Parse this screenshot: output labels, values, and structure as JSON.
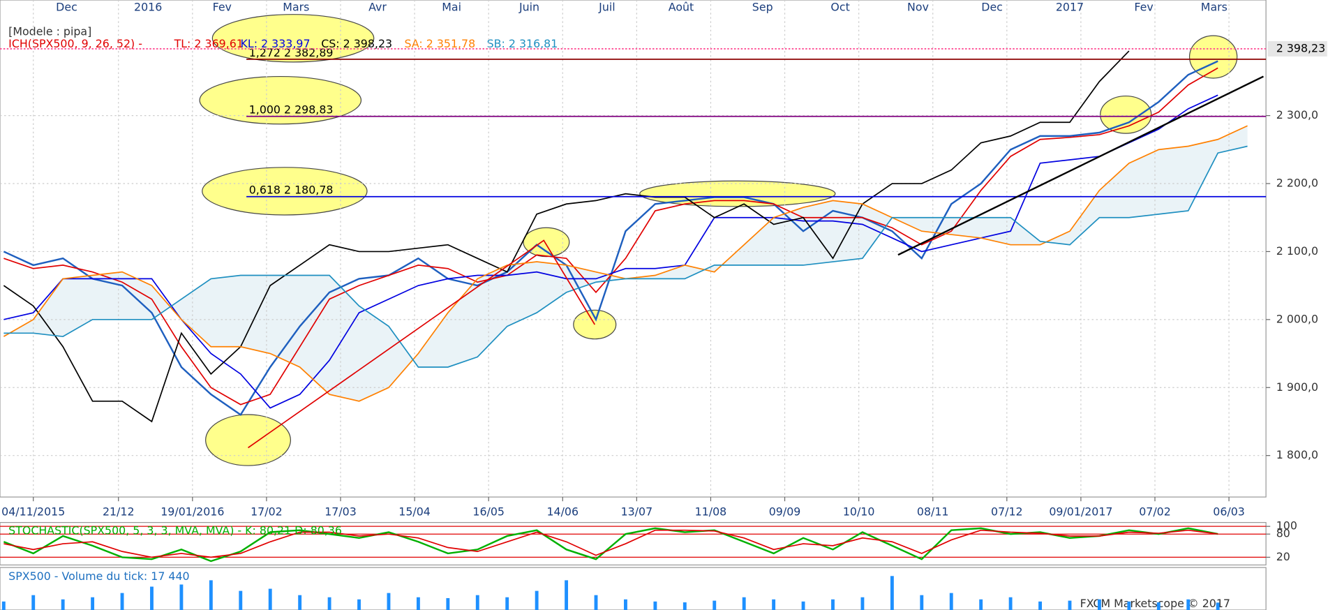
{
  "chart_data": [
    {
      "type": "line",
      "title": "[Modele : pipa]",
      "indicator": "ICH(SPX500, 9, 26, 52) -",
      "x": [
        -8,
        0,
        8,
        16,
        24,
        32,
        40,
        48,
        56,
        64,
        72,
        80,
        88,
        96,
        104,
        112,
        120,
        128,
        136,
        144,
        152,
        160,
        168,
        176,
        184,
        192,
        200,
        208,
        216,
        224,
        232,
        240,
        248,
        256,
        264,
        272,
        280,
        288,
        296,
        304,
        312,
        320,
        328
      ],
      "series": [
        {
          "color": "#1e5fbf",
          "values": [
            2100,
            2080,
            2090,
            2060,
            2050,
            2010,
            1930,
            1890,
            1860,
            1930,
            1990,
            2040,
            2060,
            2065,
            2090,
            2060,
            2050,
            2070,
            2110,
            2080,
            2000,
            2130,
            2170,
            2175,
            2180,
            2180,
            2170,
            2130,
            2160,
            2150,
            2130,
            2090,
            2170,
            2200,
            2250,
            2270,
            2270,
            2275,
            2290,
            2320,
            2360,
            2380,
            null
          ]
        },
        {
          "name": "TL: 2 369,61",
          "color": "#e00000",
          "values": [
            2090,
            2075,
            2080,
            2070,
            2055,
            2030,
            1960,
            1900,
            1875,
            1890,
            1960,
            2030,
            2050,
            2065,
            2080,
            2075,
            2055,
            2065,
            2095,
            2090,
            2040,
            2090,
            2160,
            2170,
            2175,
            2175,
            2170,
            2150,
            2150,
            2150,
            2135,
            2110,
            2130,
            2190,
            2240,
            2265,
            2268,
            2272,
            2285,
            2305,
            2345,
            2370,
            null
          ]
        },
        {
          "name": "KL: 2 333,97",
          "color": "#0000e0",
          "values": [
            2000,
            2010,
            2060,
            2060,
            2060,
            2060,
            2000,
            1950,
            1920,
            1870,
            1890,
            1940,
            2010,
            2030,
            2050,
            2060,
            2065,
            2065,
            2070,
            2060,
            2060,
            2075,
            2075,
            2080,
            2150,
            2150,
            2150,
            2145,
            2145,
            2140,
            2120,
            2100,
            2110,
            2120,
            2130,
            2230,
            2235,
            2240,
            2260,
            2280,
            2310,
            2330,
            null
          ]
        },
        {
          "name": "CS: 2 398,23",
          "color": "#000000",
          "values": [
            2050,
            2020,
            1960,
            1880,
            1880,
            1850,
            1980,
            1920,
            1960,
            2050,
            2080,
            2110,
            2100,
            2100,
            2105,
            2110,
            2090,
            2070,
            2155,
            2170,
            2175,
            2185,
            2180,
            2180,
            2150,
            2170,
            2140,
            2150,
            2090,
            2170,
            2200,
            2200,
            2220,
            2260,
            2270,
            2290,
            2290,
            2350,
            2395,
            null,
            null,
            null,
            null
          ]
        },
        {
          "name": "SA: 2 351,78",
          "color": "#ff8000",
          "values": [
            1975,
            2000,
            2060,
            2065,
            2070,
            2050,
            2000,
            1960,
            1960,
            1950,
            1930,
            1890,
            1880,
            1900,
            1950,
            2010,
            2060,
            2080,
            2085,
            2080,
            2070,
            2060,
            2065,
            2080,
            2070,
            2110,
            2150,
            2165,
            2175,
            2170,
            2150,
            2130,
            2125,
            2120,
            2110,
            2110,
            2130,
            2190,
            2230,
            2250,
            2255,
            2265,
            2285
          ]
        },
        {
          "name": "SB: 2 316,81",
          "color": "#1e8fc0",
          "values": [
            1980,
            1980,
            1975,
            2000,
            2000,
            2000,
            2030,
            2060,
            2065,
            2065,
            2065,
            2065,
            2020,
            1990,
            1930,
            1930,
            1945,
            1990,
            2010,
            2040,
            2055,
            2060,
            2060,
            2060,
            2080,
            2080,
            2080,
            2080,
            2085,
            2090,
            2150,
            2150,
            2150,
            2150,
            2150,
            2115,
            2110,
            2150,
            2150,
            2155,
            2160,
            2245,
            2255
          ]
        }
      ],
      "cloud_color": "#dcebf2",
      "xlim": [
        -9,
        333
      ],
      "ylim": [
        1739,
        2470
      ],
      "xticks": [
        {
          "value": 0,
          "label": "04/11/2015"
        },
        {
          "value": 23,
          "label": "21/12"
        },
        {
          "value": 43,
          "label": "19/01/2016"
        },
        {
          "value": 63,
          "label": "17/02"
        },
        {
          "value": 83,
          "label": "17/03"
        },
        {
          "value": 103,
          "label": "15/04"
        },
        {
          "value": 123,
          "label": "16/05"
        },
        {
          "value": 143,
          "label": "14/06"
        },
        {
          "value": 163,
          "label": "13/07"
        },
        {
          "value": 183,
          "label": "11/08"
        },
        {
          "value": 203,
          "label": "09/09"
        },
        {
          "value": 223,
          "label": "10/10"
        },
        {
          "value": 243,
          "label": "08/11"
        },
        {
          "value": 263,
          "label": "07/12"
        },
        {
          "value": 283,
          "label": "09/01/2017"
        },
        {
          "value": 303,
          "label": "07/02"
        },
        {
          "value": 323,
          "label": "06/03"
        }
      ],
      "top_xticks": [
        {
          "value": 9,
          "label": "Dec"
        },
        {
          "value": 31,
          "label": "2016"
        },
        {
          "value": 51,
          "label": "Fev"
        },
        {
          "value": 71,
          "label": "Mars"
        },
        {
          "value": 93,
          "label": "Avr"
        },
        {
          "value": 113,
          "label": "Mai"
        },
        {
          "value": 134,
          "label": "Juin"
        },
        {
          "value": 155,
          "label": "Juil"
        },
        {
          "value": 175,
          "label": "Août"
        },
        {
          "value": 197,
          "label": "Sep"
        },
        {
          "value": 218,
          "label": "Oct"
        },
        {
          "value": 239,
          "label": "Nov"
        },
        {
          "value": 259,
          "label": "Dec"
        },
        {
          "value": 280,
          "label": "2017"
        },
        {
          "value": 300,
          "label": "Fev"
        },
        {
          "value": 319,
          "label": "Mars"
        }
      ],
      "yticks": [
        {
          "value": 1800,
          "label": "1 800,0"
        },
        {
          "value": 1900,
          "label": "1 900,0"
        },
        {
          "value": 2000,
          "label": "2 000,0"
        },
        {
          "value": 2100,
          "label": "2 100,0"
        },
        {
          "value": 2200,
          "label": "2 200,0"
        },
        {
          "value": 2300,
          "label": "2 300,0"
        }
      ],
      "levels": [
        {
          "label": "1,272 2 382,89",
          "value": 2382.89,
          "color": "#8b0000"
        },
        {
          "label": "1,000 2 298,83",
          "value": 2298.83,
          "color": "#800080"
        },
        {
          "label": "0,618 2 180,78",
          "value": 2180.78,
          "color": "#0000e0"
        }
      ],
      "last_price": {
        "value": 2398.23,
        "label": "2 398,23",
        "color": "#ff4d94"
      },
      "grid": true,
      "grid_color": "#cccccc"
    },
    {
      "type": "line",
      "title": "STOCHASTIC(SPX500, 5, 3, 3, MVA, MVA) - K: 80,21 D: 80,36",
      "x": [
        -8,
        0,
        8,
        16,
        24,
        32,
        40,
        48,
        56,
        64,
        72,
        80,
        88,
        96,
        104,
        112,
        120,
        128,
        136,
        144,
        152,
        160,
        168,
        176,
        184,
        192,
        200,
        208,
        216,
        224,
        232,
        240,
        248,
        256,
        264,
        272,
        280,
        288,
        296,
        304,
        312,
        320,
        328
      ],
      "series": [
        {
          "name": "K",
          "color": "#00b000",
          "values": [
            60,
            30,
            75,
            50,
            20,
            15,
            40,
            10,
            35,
            85,
            90,
            80,
            70,
            85,
            60,
            30,
            40,
            75,
            90,
            40,
            15,
            80,
            95,
            85,
            90,
            60,
            30,
            70,
            40,
            85,
            50,
            15,
            90,
            95,
            80,
            85,
            70,
            75,
            90,
            80,
            95,
            80.21,
            null
          ]
        },
        {
          "name": "D",
          "color": "#e00000",
          "values": [
            55,
            40,
            55,
            60,
            35,
            20,
            30,
            20,
            30,
            60,
            85,
            85,
            75,
            80,
            70,
            45,
            35,
            60,
            85,
            60,
            25,
            55,
            90,
            90,
            88,
            70,
            40,
            55,
            50,
            70,
            60,
            30,
            65,
            90,
            85,
            82,
            75,
            75,
            85,
            82,
            90,
            80.36,
            null
          ]
        }
      ],
      "xlim": [
        -9,
        333
      ],
      "ylim": [
        0,
        110
      ],
      "yticks": [
        20,
        80,
        100
      ],
      "grid": true,
      "grid_color": "#e00000"
    },
    {
      "type": "bar",
      "title": "SPX500 - Volume du tick: 17 440",
      "x": [
        -8,
        0,
        8,
        16,
        24,
        32,
        40,
        48,
        56,
        64,
        72,
        80,
        88,
        96,
        104,
        112,
        120,
        128,
        136,
        144,
        152,
        160,
        168,
        176,
        184,
        192,
        200,
        208,
        216,
        224,
        232,
        240,
        248,
        256,
        264,
        272,
        280,
        288,
        296,
        304,
        312,
        320,
        328
      ],
      "values": [
        20000,
        35000,
        25000,
        30000,
        40000,
        55000,
        60000,
        70000,
        45000,
        50000,
        35000,
        30000,
        25000,
        40000,
        30000,
        28000,
        35000,
        30000,
        45000,
        70000,
        35000,
        25000,
        20000,
        18000,
        22000,
        30000,
        25000,
        20000,
        25000,
        30000,
        80000,
        35000,
        40000,
        25000,
        30000,
        20000,
        22000,
        25000,
        20000,
        18000,
        25000,
        17440,
        null
      ],
      "color": "#1e90ff",
      "xlim": [
        -9,
        333
      ],
      "ylim": [
        0,
        100000
      ]
    }
  ],
  "footer": "FXCM Marketscope © 2017"
}
